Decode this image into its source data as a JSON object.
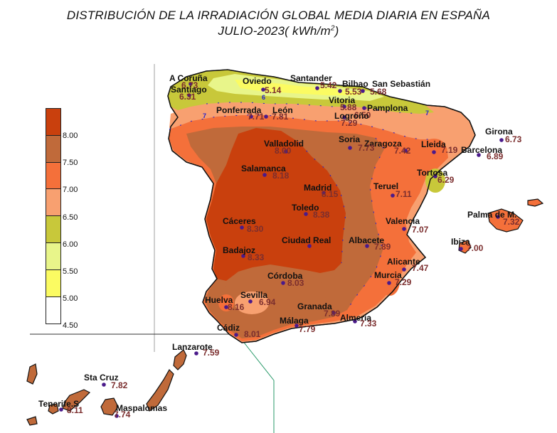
{
  "title": {
    "line1": "DISTRIBUCIÓN DE LA IRRADIACIÓN GLOBAL MEDIA DIARIA EN  ESPAÑA",
    "line2_prefix": "JULIO-2023( kWh/m",
    "line2_sup": "2",
    "line2_suffix": ")"
  },
  "legend": {
    "ticks": [
      "8.00",
      "7.50",
      "7.00",
      "6.50",
      "6.00",
      "5.50",
      "5.00",
      "4.50"
    ],
    "colors": [
      "#c9400d",
      "#c06a3a",
      "#f4703a",
      "#f8a070",
      "#c8c83a",
      "#e8f58a",
      "#fbfb62",
      "#ffffff"
    ]
  },
  "stations": [
    {
      "name": "A Coruña",
      "value": "6.73"
    },
    {
      "name": "Santiago",
      "value": "6.31"
    },
    {
      "name": "Oviedo",
      "value": "5.14"
    },
    {
      "name": "Santander",
      "value": "5.42"
    },
    {
      "name": "Bilbao",
      "value": "5.53"
    },
    {
      "name": "San Sebastián",
      "value": "5.68"
    },
    {
      "name": "Vitoria",
      "value": "5.88"
    },
    {
      "name": "Pamplona",
      "value": "6.50"
    },
    {
      "name": "Logroño",
      "value": "7.29"
    },
    {
      "name": "Ponferrada",
      "value": "7.71"
    },
    {
      "name": "León",
      "value": "7.81"
    },
    {
      "name": "Girona",
      "value": "6.73"
    },
    {
      "name": "Barcelona",
      "value": "6.89"
    },
    {
      "name": "Lleida",
      "value": "7.19"
    },
    {
      "name": "Zaragoza",
      "value": "7.42"
    },
    {
      "name": "Soria",
      "value": "7.73"
    },
    {
      "name": "Valladolid",
      "value": "8.00"
    },
    {
      "name": "Tortosa",
      "value": "6.29"
    },
    {
      "name": "Salamanca",
      "value": "8.18"
    },
    {
      "name": "Madrid",
      "value": "8.15"
    },
    {
      "name": "Teruel",
      "value": "7.11"
    },
    {
      "name": "Toledo",
      "value": "8.38"
    },
    {
      "name": "Valencia",
      "value": "7.07"
    },
    {
      "name": "Palma de M.",
      "value": "7.32"
    },
    {
      "name": "Ibiza",
      "value": "7.00"
    },
    {
      "name": "Cáceres",
      "value": "8.30"
    },
    {
      "name": "Ciudad Real",
      "value": ""
    },
    {
      "name": "Albacete",
      "value": "7.89"
    },
    {
      "name": "Badajoz",
      "value": "8.33"
    },
    {
      "name": "Alicante",
      "value": "7.47"
    },
    {
      "name": "Córdoba",
      "value": "8.03"
    },
    {
      "name": "Murcia",
      "value": "7.29"
    },
    {
      "name": "Sevilla",
      "value": "6.94"
    },
    {
      "name": "Huelva",
      "value": "8.16"
    },
    {
      "name": "Granada",
      "value": "7.89"
    },
    {
      "name": "Almería",
      "value": "7.33"
    },
    {
      "name": "Málaga",
      "value": "7.79"
    },
    {
      "name": "Cádiz",
      "value": "8.01"
    },
    {
      "name": "Lanzarote",
      "value": "7.59"
    },
    {
      "name": "Sta Cruz",
      "value": "7.82"
    },
    {
      "name": "Tenerife.S",
      "value": "8.11"
    },
    {
      "name": "Maspalomas",
      "value": "7.74"
    }
  ],
  "contour_labels": [
    "7",
    "6",
    "8"
  ],
  "colors": {
    "c8plus": "#c9400d",
    "c75_8": "#c06a3a",
    "c7_75": "#f4703a",
    "c65_7": "#f8a070",
    "c6_65": "#c8c83a",
    "c55_6": "#e8f58a",
    "c5_55": "#fbfb62",
    "contour": "#2020d0",
    "station": "#4a1a8a"
  }
}
